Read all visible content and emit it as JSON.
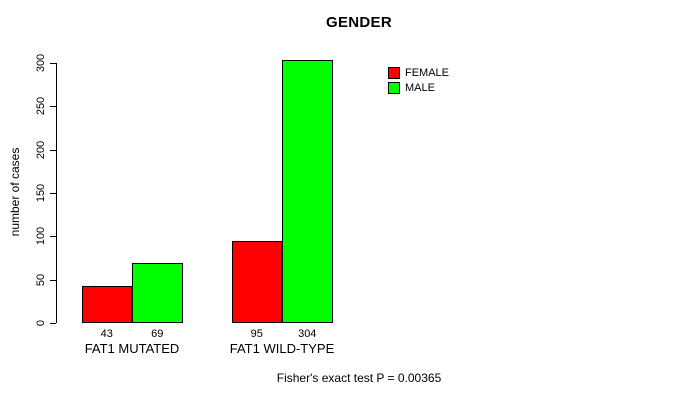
{
  "chart_data": {
    "type": "bar",
    "title": "GENDER",
    "ylabel": "number of cases",
    "xlabel": "",
    "ylim": [
      0,
      300
    ],
    "yticks": [
      0,
      50,
      100,
      150,
      200,
      250,
      300
    ],
    "grid": false,
    "categories": [
      "FAT1 MUTATED",
      "FAT1 WILD-TYPE"
    ],
    "series": [
      {
        "name": "FEMALE",
        "color": "#ff0000",
        "values": [
          43,
          95
        ]
      },
      {
        "name": "MALE",
        "color": "#00ff00",
        "values": [
          69,
          304
        ]
      }
    ],
    "bar_value_labels_shown": true,
    "legend": {
      "position": "top-right",
      "entries": [
        "FEMALE",
        "MALE"
      ]
    },
    "caption": "Fisher's exact test P = 0.00365"
  }
}
